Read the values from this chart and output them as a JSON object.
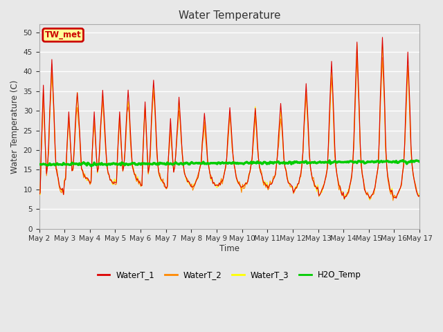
{
  "title": "Water Temperature",
  "ylabel": "Water Temperature (C)",
  "xlabel": "Time",
  "annotation": "TW_met",
  "ylim": [
    0,
    52
  ],
  "yticks": [
    0,
    5,
    10,
    15,
    20,
    25,
    30,
    35,
    40,
    45,
    50
  ],
  "plot_bg_color": "#e8e8e8",
  "fig_bg_color": "#e8e8e8",
  "grid_color": "#ffffff",
  "series_colors": {
    "WaterT_1": "#dd0000",
    "WaterT_2": "#ff8800",
    "WaterT_3": "#ffff00",
    "H2O_Temp": "#00cc00"
  },
  "num_days": 15,
  "annotation_bbox": {
    "facecolor": "#ffff99",
    "edgecolor": "#cc0000",
    "linewidth": 2
  },
  "figsize": [
    6.4,
    4.8
  ],
  "dpi": 100
}
